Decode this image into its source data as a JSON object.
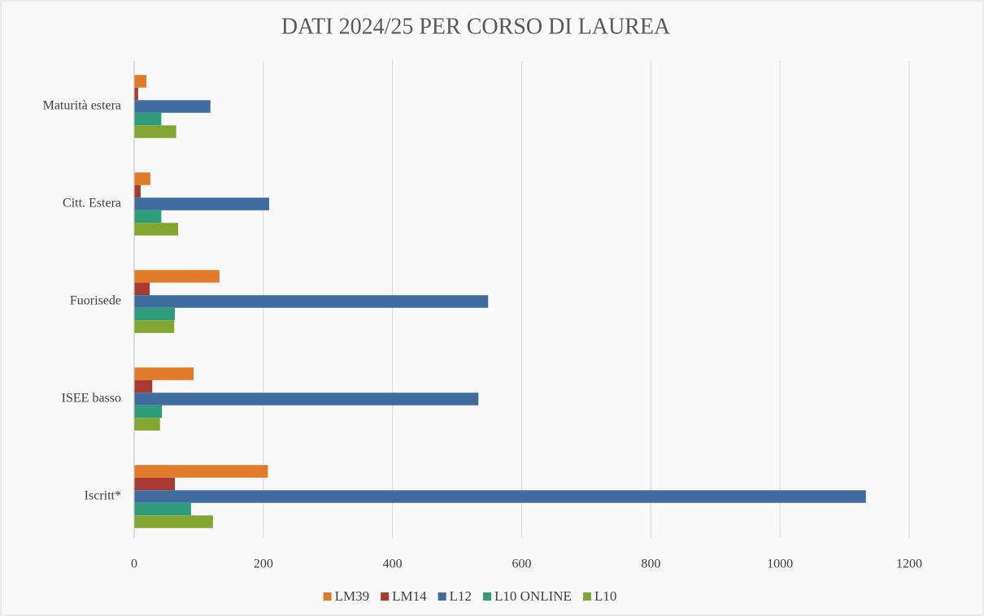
{
  "chart_data": {
    "type": "barh",
    "title": "DATI 2024/25 PER CORSO DI LAUREA",
    "categories": [
      "Iscritt*",
      "ISEE basso",
      "Fuorisede",
      "Citt. Estera",
      "Maturità estera"
    ],
    "series": [
      {
        "name": "LM39",
        "color": "#e07b2a",
        "values": [
          207,
          92,
          132,
          25,
          19
        ]
      },
      {
        "name": "LM14",
        "color": "#a83a32",
        "values": [
          63,
          28,
          24,
          10,
          6
        ]
      },
      {
        "name": "L12",
        "color": "#3f6da0",
        "values": [
          1133,
          533,
          548,
          209,
          118
        ]
      },
      {
        "name": "L10 ONLINE",
        "color": "#2e9e7a",
        "values": [
          88,
          43,
          63,
          42,
          42
        ]
      },
      {
        "name": "L10",
        "color": "#82a630",
        "values": [
          122,
          40,
          62,
          68,
          65
        ]
      }
    ],
    "xlim": [
      0,
      1200
    ],
    "xticks": [
      0,
      200,
      400,
      600,
      800,
      1000,
      1200
    ],
    "grid": true
  }
}
